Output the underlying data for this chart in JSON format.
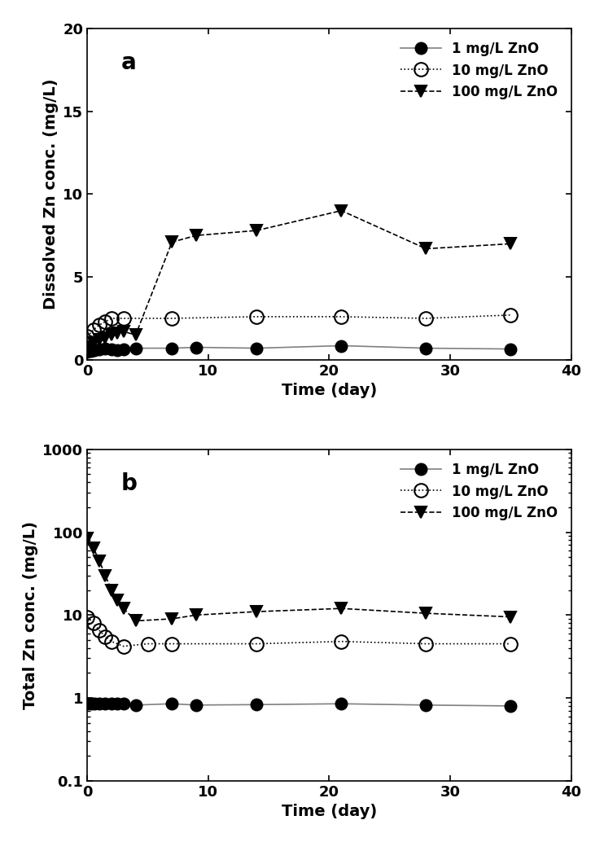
{
  "panel_a": {
    "title": "a",
    "ylabel": "Dissolved Zn conc. (mg/L)",
    "xlabel": "Time (day)",
    "ylim": [
      0,
      20
    ],
    "xlim": [
      0,
      40
    ],
    "yticks": [
      0,
      5,
      10,
      15,
      20
    ],
    "xticks": [
      0,
      10,
      20,
      30,
      40
    ],
    "series": [
      {
        "label": "1 mg/L ZnO",
        "x": [
          0,
          0.3,
          0.6,
          1,
          1.5,
          2,
          2.5,
          3,
          4,
          7,
          9,
          14,
          21,
          28,
          35
        ],
        "y": [
          0.5,
          0.55,
          0.6,
          0.65,
          0.7,
          0.65,
          0.6,
          0.65,
          0.7,
          0.7,
          0.75,
          0.7,
          0.85,
          0.7,
          0.65
        ],
        "marker": "o",
        "fillstyle": "full",
        "markercolor": "black",
        "linestyle": "-",
        "linecolor": "gray",
        "linewidth": 1.2,
        "markersize": 10
      },
      {
        "label": "10 mg/L ZnO",
        "x": [
          0,
          0.5,
          1,
          1.5,
          2,
          3,
          7,
          14,
          21,
          28,
          35
        ],
        "y": [
          1.4,
          1.8,
          2.1,
          2.3,
          2.5,
          2.5,
          2.5,
          2.6,
          2.6,
          2.5,
          2.7
        ],
        "marker": "o",
        "fillstyle": "none",
        "markercolor": "black",
        "linestyle": ":",
        "linecolor": "black",
        "linewidth": 1.2,
        "markersize": 12
      },
      {
        "label": "100 mg/L ZnO",
        "x": [
          0,
          0.5,
          1,
          1.5,
          2,
          2.5,
          3,
          4,
          7,
          9,
          14,
          21,
          28,
          35
        ],
        "y": [
          0.8,
          1.0,
          1.2,
          1.3,
          1.5,
          1.6,
          1.7,
          1.5,
          7.1,
          7.5,
          7.8,
          9.0,
          6.7,
          7.0
        ],
        "marker": "v",
        "fillstyle": "full",
        "markercolor": "black",
        "linestyle": "--",
        "linecolor": "black",
        "linewidth": 1.2,
        "markersize": 10
      }
    ]
  },
  "panel_b": {
    "title": "b",
    "ylabel": "Total Zn conc. (mg/L)",
    "xlabel": "Time (day)",
    "ylim": [
      0.1,
      1000
    ],
    "xlim": [
      0,
      40
    ],
    "xticks": [
      0,
      10,
      20,
      30,
      40
    ],
    "series": [
      {
        "label": "1 mg/L ZnO",
        "x": [
          0,
          0.3,
          0.6,
          1,
          1.5,
          2,
          2.5,
          3,
          4,
          7,
          9,
          14,
          21,
          28,
          35
        ],
        "y": [
          0.85,
          0.85,
          0.85,
          0.85,
          0.85,
          0.85,
          0.85,
          0.85,
          0.82,
          0.85,
          0.82,
          0.83,
          0.85,
          0.82,
          0.8
        ],
        "marker": "o",
        "fillstyle": "full",
        "markercolor": "black",
        "linestyle": "-",
        "linecolor": "gray",
        "linewidth": 1.2,
        "markersize": 10
      },
      {
        "label": "10 mg/L ZnO",
        "x": [
          0,
          0.5,
          1,
          1.5,
          2,
          3,
          5,
          7,
          14,
          21,
          28,
          35
        ],
        "y": [
          9.5,
          8.0,
          6.5,
          5.5,
          4.8,
          4.2,
          4.5,
          4.5,
          4.5,
          4.8,
          4.5,
          4.5
        ],
        "marker": "o",
        "fillstyle": "none",
        "markercolor": "black",
        "linestyle": ":",
        "linecolor": "black",
        "linewidth": 1.2,
        "markersize": 12
      },
      {
        "label": "100 mg/L ZnO",
        "x": [
          0,
          0.5,
          1,
          1.5,
          2,
          2.5,
          3,
          4,
          7,
          9,
          14,
          21,
          28,
          35
        ],
        "y": [
          85.0,
          65.0,
          45.0,
          30.0,
          20.0,
          15.0,
          12.0,
          8.5,
          9.0,
          10.0,
          11.0,
          12.0,
          10.5,
          9.5
        ],
        "marker": "v",
        "fillstyle": "full",
        "markercolor": "black",
        "linestyle": "--",
        "linecolor": "black",
        "linewidth": 1.2,
        "markersize": 10
      }
    ]
  },
  "figure_bg": "white",
  "label_fontsize": 14,
  "tick_fontsize": 13,
  "legend_fontsize": 12,
  "panel_label_fontsize": 20
}
